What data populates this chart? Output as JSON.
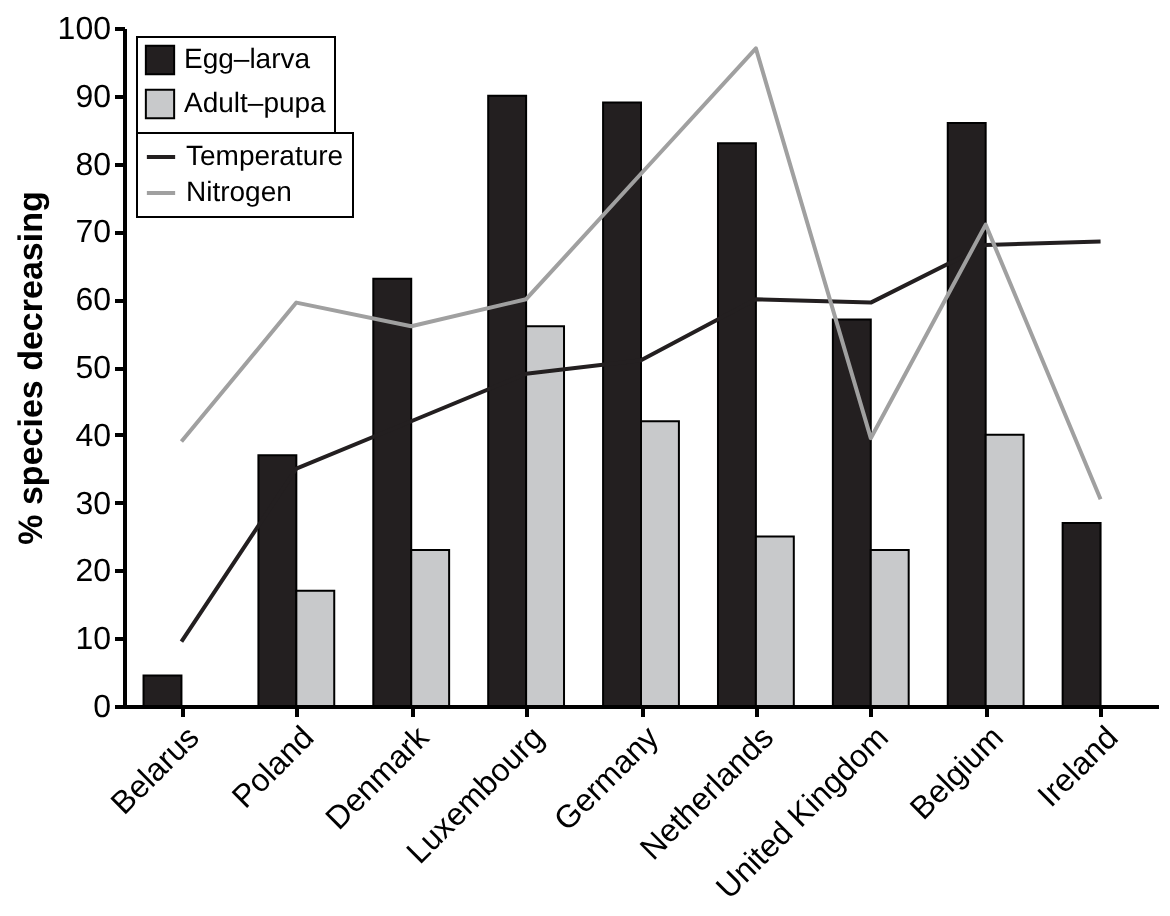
{
  "chart_data": {
    "type": "bar",
    "ylabel": "% species decreasing",
    "categories": [
      "Belarus",
      "Poland",
      "Denmark",
      "Luxembourg",
      "Germany",
      "Netherlands",
      "United Kingdom",
      "Belgium",
      "Ireland"
    ],
    "series": [
      {
        "name": "Egg–larva",
        "color": "#231f20",
        "values": [
          4.5,
          37,
          63,
          90,
          89,
          83,
          57,
          86,
          27
        ]
      },
      {
        "name": "Adult–pupa",
        "color": "#c8c9cb",
        "values": [
          null,
          17,
          23,
          56,
          42,
          25,
          23,
          40,
          null
        ]
      },
      {
        "name": "Temperature",
        "type": "line",
        "color": "#231f20",
        "values": [
          9.5,
          35,
          42,
          49,
          51,
          60,
          59.5,
          68,
          68.5
        ]
      },
      {
        "name": "Nitrogen",
        "type": "line",
        "color": "#a0a0a0",
        "values": [
          39,
          59.5,
          56,
          60,
          78.5,
          97,
          39.5,
          71,
          30.5
        ]
      }
    ],
    "ylim": [
      0,
      100
    ],
    "yticks": [
      0,
      10,
      20,
      30,
      40,
      50,
      60,
      70,
      80,
      90,
      100
    ],
    "grid": false,
    "legend": "top left"
  }
}
